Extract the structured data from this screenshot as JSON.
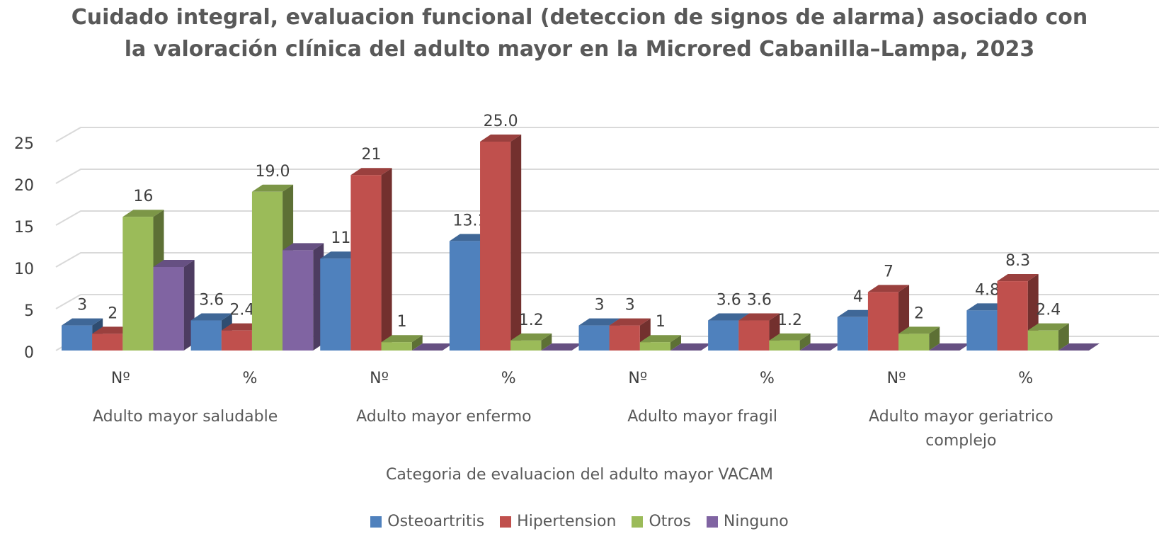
{
  "chart_data": {
    "type": "bar3d",
    "title": "Cuidado integral, evaluacion funcional (deteccion de signos de alarma) asociado con la valoración clínica del adulto mayor en la Microred  Cabanilla–Lampa, 2023",
    "x_label": "Categoria de evaluacion del adulto mayor VACAM",
    "categories": [
      "Nº",
      "%",
      "Nº",
      "%",
      "Nº",
      "%",
      "Nº",
      "%"
    ],
    "groups": [
      "Adulto mayor saludable",
      "Adulto mayor enfermo",
      "Adulto mayor fragil",
      "Adulto mayor geriatrico complejo"
    ],
    "ylim": [
      0,
      25
    ],
    "yticks": [
      0,
      5,
      10,
      15,
      20,
      25
    ],
    "grid": true,
    "legend": "bottom",
    "series": [
      {
        "name": "Osteoartritis",
        "color": "#4f81bd",
        "values": [
          3,
          3.6,
          11,
          13.1,
          3,
          3.6,
          4,
          4.8
        ],
        "value_labels": [
          "3",
          "3.6",
          "11",
          "13.1",
          "3",
          "3.6",
          "4",
          "4.8"
        ]
      },
      {
        "name": "Hipertension",
        "color": "#c0504d",
        "values": [
          2,
          2.4,
          21,
          25.0,
          3,
          3.6,
          7,
          8.3
        ],
        "value_labels": [
          "2",
          "2.4",
          "21",
          "25.0",
          "3",
          "3.6",
          "7",
          "8.3"
        ]
      },
      {
        "name": "Otros",
        "color": "#9bbb59",
        "values": [
          16,
          19.0,
          1,
          1.2,
          1,
          1.2,
          2,
          2.4
        ],
        "value_labels": [
          "16",
          "19.0",
          "1",
          "1.2",
          "1",
          "1.2",
          "2",
          "2.4"
        ]
      },
      {
        "name": "Ninguno",
        "color": "#8064a2",
        "values": [
          10,
          12,
          0,
          0,
          0,
          0,
          0,
          0
        ]
      }
    ]
  }
}
